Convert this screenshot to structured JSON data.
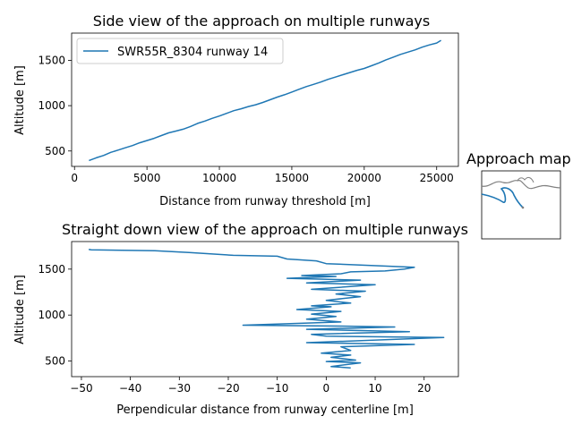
{
  "chart_data": [
    {
      "type": "line",
      "title": "Side view of the approach on multiple runways",
      "xlabel": "Distance from runway threshold [m]",
      "ylabel": "Altitude [m]",
      "xlim": [
        -200,
        26500
      ],
      "ylim": [
        330,
        1800
      ],
      "xticks": [
        0,
        5000,
        10000,
        15000,
        20000,
        25000
      ],
      "yticks": [
        500,
        1000,
        1500
      ],
      "legend_position": "upper-left",
      "color": "#1f77b4",
      "series": [
        {
          "name": "SWR55R_8304 runway 14",
          "x": [
            1000,
            1500,
            2000,
            2500,
            3000,
            3500,
            4000,
            4500,
            5000,
            5500,
            6000,
            6500,
            7000,
            7500,
            8000,
            8500,
            9000,
            9500,
            10000,
            10500,
            11000,
            11500,
            12000,
            12500,
            13000,
            13500,
            14000,
            14500,
            15000,
            15500,
            16000,
            16500,
            17000,
            17500,
            18000,
            18500,
            19000,
            19500,
            20000,
            20500,
            21000,
            21500,
            22000,
            22500,
            23000,
            23500,
            24000,
            24500,
            25000,
            25300
          ],
          "y": [
            395,
            425,
            450,
            485,
            510,
            535,
            560,
            590,
            615,
            640,
            670,
            700,
            720,
            740,
            770,
            805,
            830,
            860,
            885,
            915,
            945,
            965,
            990,
            1010,
            1035,
            1065,
            1095,
            1120,
            1150,
            1180,
            1210,
            1235,
            1260,
            1290,
            1315,
            1340,
            1365,
            1390,
            1410,
            1440,
            1470,
            1505,
            1535,
            1565,
            1590,
            1615,
            1645,
            1670,
            1690,
            1720
          ]
        }
      ]
    },
    {
      "type": "line",
      "title": "Straight down view of the approach on multiple runways",
      "xlabel": "Perpendicular distance from runway centerline [m]",
      "ylabel": "Altitude [m]",
      "xlim": [
        -52,
        27
      ],
      "ylim": [
        330,
        1800
      ],
      "xticks": [
        -50,
        -40,
        -30,
        -20,
        -10,
        0,
        10,
        20
      ],
      "yticks": [
        500,
        1000,
        1500
      ],
      "color": "#1f77b4",
      "series": [
        {
          "name": "",
          "x": [
            5,
            1,
            7,
            0,
            6,
            1,
            5,
            -1,
            5,
            3,
            18,
            -4,
            24,
            0,
            -3,
            17,
            -4,
            14,
            3,
            -17,
            3,
            -4,
            2,
            -3,
            3,
            -6,
            1,
            -3,
            5,
            0,
            7,
            2,
            8,
            -3,
            10,
            -4,
            7,
            -8,
            2,
            -5,
            3,
            5,
            12,
            16,
            18,
            0,
            -2,
            -8,
            -10,
            -19,
            -28,
            -35,
            -48,
            -48.5
          ],
          "y": [
            425,
            440,
            480,
            495,
            510,
            540,
            565,
            585,
            615,
            655,
            680,
            700,
            755,
            770,
            790,
            820,
            845,
            870,
            880,
            890,
            925,
            955,
            985,
            1010,
            1040,
            1060,
            1090,
            1100,
            1130,
            1160,
            1200,
            1230,
            1260,
            1280,
            1330,
            1350,
            1380,
            1400,
            1420,
            1430,
            1450,
            1470,
            1480,
            1500,
            1520,
            1560,
            1590,
            1610,
            1640,
            1650,
            1680,
            1700,
            1710,
            1715
          ]
        }
      ]
    }
  ],
  "inset": {
    "title": "Approach map"
  }
}
